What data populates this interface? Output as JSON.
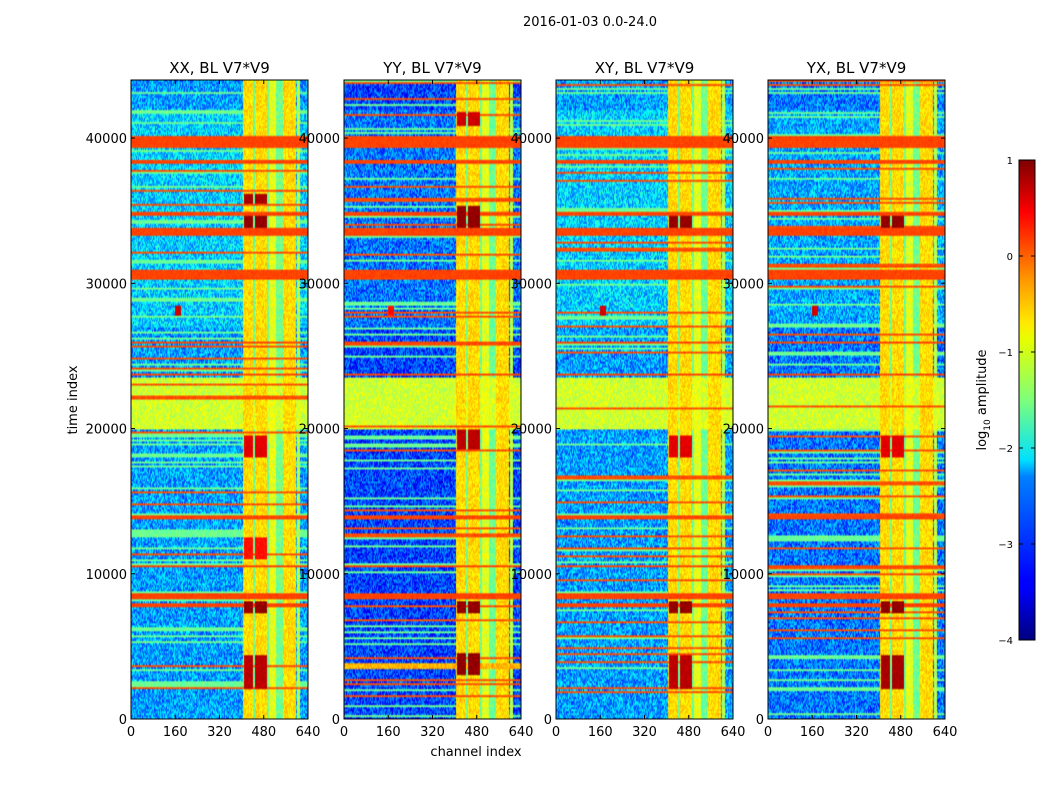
{
  "figure": {
    "suptitle": "2016-01-03 0.0-24.0",
    "xlabel": "channel index",
    "ylabel": "time index"
  },
  "colorbar": {
    "label": "log10 amplitude",
    "label_main": "log",
    "label_sub": "10",
    "label_rest": " amplitude",
    "colormap": "jet",
    "vmin": -4,
    "vmax": 1,
    "ticks": [
      1,
      0,
      -1,
      -2,
      -3,
      -4
    ],
    "tick_labels": [
      "1",
      "0",
      "−1",
      "−2",
      "−3",
      "−4"
    ]
  },
  "chart_data": [
    {
      "type": "heatmap",
      "title": "XX, BL V7*V9",
      "seed": 11,
      "xlim": [
        0,
        640
      ],
      "ylim": [
        0,
        44000
      ],
      "xticks": [
        0,
        160,
        320,
        480,
        640
      ],
      "xtick_labels": [
        "0",
        "160",
        "320",
        "480",
        "640"
      ],
      "yticks": [
        0,
        10000,
        20000,
        30000,
        40000
      ],
      "ytick_labels": [
        "0",
        "10000",
        "20000",
        "30000",
        "40000"
      ],
      "show_ylabel": true,
      "show_xlabel": false,
      "background_level": -2.6,
      "channel_bands": [
        {
          "from": 405,
          "to": 440,
          "level": -0.7
        },
        {
          "from": 440,
          "to": 448,
          "level": -1.6
        },
        {
          "from": 448,
          "to": 490,
          "level": -0.7
        },
        {
          "from": 490,
          "to": 500,
          "level": -1.6
        },
        {
          "from": 500,
          "to": 525,
          "level": -1.0
        },
        {
          "from": 525,
          "to": 550,
          "level": -1.6
        },
        {
          "from": 550,
          "to": 595,
          "level": -0.7
        },
        {
          "from": 600,
          "to": 612,
          "level": -1.2
        }
      ],
      "time_bands": [
        {
          "from": 39300,
          "to": 40100,
          "level": 0.05
        },
        {
          "from": 38200,
          "to": 38500,
          "level": 0.05
        },
        {
          "from": 34700,
          "to": 34900,
          "level": 0.05
        },
        {
          "from": 33300,
          "to": 33800,
          "level": 0.05
        },
        {
          "from": 30300,
          "to": 31000,
          "level": 0.05
        },
        {
          "from": 25800,
          "to": 26000,
          "level": 0.05
        },
        {
          "from": 23600,
          "to": 23800,
          "level": 0.05
        },
        {
          "from": 20000,
          "to": 23500,
          "level": -1.1
        },
        {
          "from": 13800,
          "to": 14000,
          "level": 0.05
        },
        {
          "from": 10400,
          "to": 10600,
          "level": 0.05
        },
        {
          "from": 8300,
          "to": 8600,
          "level": 0.05
        },
        {
          "from": 7700,
          "to": 8000,
          "level": 0.05
        }
      ],
      "rfi_blocks": [
        {
          "c0": 410,
          "c1": 440,
          "t0": 33800,
          "t1": 34600,
          "level": 0.9
        },
        {
          "c0": 450,
          "c1": 490,
          "t0": 33800,
          "t1": 34600,
          "level": 0.9
        },
        {
          "c0": 410,
          "c1": 440,
          "t0": 35500,
          "t1": 36200,
          "level": 0.8
        },
        {
          "c0": 450,
          "c1": 490,
          "t0": 35500,
          "t1": 36200,
          "level": 0.8
        },
        {
          "c0": 410,
          "c1": 440,
          "t0": 7300,
          "t1": 8100,
          "level": 0.9
        },
        {
          "c0": 450,
          "c1": 490,
          "t0": 7300,
          "t1": 8100,
          "level": 0.9
        },
        {
          "c0": 410,
          "c1": 440,
          "t0": 2000,
          "t1": 4400,
          "level": 0.7
        },
        {
          "c0": 450,
          "c1": 490,
          "t0": 2000,
          "t1": 4400,
          "level": 0.7
        },
        {
          "c0": 410,
          "c1": 440,
          "t0": 18000,
          "t1": 19500,
          "level": 0.5
        },
        {
          "c0": 450,
          "c1": 490,
          "t0": 18000,
          "t1": 19500,
          "level": 0.5
        },
        {
          "c0": 410,
          "c1": 440,
          "t0": 11000,
          "t1": 12500,
          "level": 0.3
        },
        {
          "c0": 450,
          "c1": 490,
          "t0": 11000,
          "t1": 12500,
          "level": 0.3
        },
        {
          "c0": 160,
          "c1": 180,
          "t0": 27800,
          "t1": 28500,
          "level": 0.6
        }
      ]
    },
    {
      "type": "heatmap",
      "title": "YY, BL V7*V9",
      "seed": 23,
      "xlim": [
        0,
        640
      ],
      "ylim": [
        0,
        44000
      ],
      "xticks": [
        0,
        160,
        320,
        480,
        640
      ],
      "xtick_labels": [
        "0",
        "160",
        "320",
        "480",
        "640"
      ],
      "yticks": [
        0,
        10000,
        20000,
        30000,
        40000
      ],
      "ytick_labels": [
        "0",
        "10000",
        "20000",
        "30000",
        "40000"
      ],
      "show_ylabel": false,
      "show_xlabel": true,
      "background_level": -3.05,
      "channel_bands": [
        {
          "from": 405,
          "to": 440,
          "level": -0.7
        },
        {
          "from": 440,
          "to": 448,
          "level": -1.6
        },
        {
          "from": 448,
          "to": 490,
          "level": -0.7
        },
        {
          "from": 490,
          "to": 500,
          "level": -1.6
        },
        {
          "from": 500,
          "to": 525,
          "level": -1.0
        },
        {
          "from": 525,
          "to": 550,
          "level": -1.6
        },
        {
          "from": 550,
          "to": 595,
          "level": -0.7
        },
        {
          "from": 600,
          "to": 612,
          "level": -1.2
        }
      ],
      "time_bands": [
        {
          "from": 39300,
          "to": 40100,
          "level": 0.05
        },
        {
          "from": 38200,
          "to": 38500,
          "level": 0.05
        },
        {
          "from": 34700,
          "to": 34900,
          "level": 0.05
        },
        {
          "from": 33300,
          "to": 33800,
          "level": 0.05
        },
        {
          "from": 30300,
          "to": 31000,
          "level": 0.05
        },
        {
          "from": 25800,
          "to": 26000,
          "level": 0.05
        },
        {
          "from": 23600,
          "to": 23800,
          "level": 0.05
        },
        {
          "from": 20000,
          "to": 23500,
          "level": -1.1
        },
        {
          "from": 13800,
          "to": 14000,
          "level": 0.05
        },
        {
          "from": 10400,
          "to": 10600,
          "level": 0.05
        },
        {
          "from": 8300,
          "to": 8600,
          "level": 0.05
        },
        {
          "from": 3500,
          "to": 3900,
          "level": -0.5
        }
      ],
      "rfi_blocks": [
        {
          "c0": 410,
          "c1": 440,
          "t0": 33800,
          "t1": 35400,
          "level": 0.9
        },
        {
          "c0": 450,
          "c1": 490,
          "t0": 33800,
          "t1": 35400,
          "level": 0.9
        },
        {
          "c0": 410,
          "c1": 440,
          "t0": 7300,
          "t1": 8100,
          "level": 0.9
        },
        {
          "c0": 450,
          "c1": 490,
          "t0": 7300,
          "t1": 8100,
          "level": 0.9
        },
        {
          "c0": 410,
          "c1": 440,
          "t0": 3000,
          "t1": 4500,
          "level": 0.9
        },
        {
          "c0": 450,
          "c1": 490,
          "t0": 3000,
          "t1": 4500,
          "level": 0.9
        },
        {
          "c0": 410,
          "c1": 440,
          "t0": 18500,
          "t1": 20000,
          "level": 0.7
        },
        {
          "c0": 450,
          "c1": 490,
          "t0": 18500,
          "t1": 20000,
          "level": 0.7
        },
        {
          "c0": 410,
          "c1": 440,
          "t0": 40800,
          "t1": 41800,
          "level": 0.6
        },
        {
          "c0": 450,
          "c1": 490,
          "t0": 40800,
          "t1": 41800,
          "level": 0.6
        },
        {
          "c0": 160,
          "c1": 180,
          "t0": 27800,
          "t1": 28500,
          "level": 0.3
        }
      ]
    },
    {
      "type": "heatmap",
      "title": "XY, BL V7*V9",
      "seed": 37,
      "xlim": [
        0,
        640
      ],
      "ylim": [
        0,
        44000
      ],
      "xticks": [
        0,
        160,
        320,
        480,
        640
      ],
      "xtick_labels": [
        "0",
        "160",
        "320",
        "480",
        "640"
      ],
      "yticks": [
        0,
        10000,
        20000,
        30000,
        40000
      ],
      "ytick_labels": [
        "0",
        "10000",
        "20000",
        "30000",
        "40000"
      ],
      "show_ylabel": false,
      "show_xlabel": false,
      "background_level": -2.6,
      "channel_bands": [
        {
          "from": 405,
          "to": 440,
          "level": -0.7
        },
        {
          "from": 440,
          "to": 448,
          "level": -1.6
        },
        {
          "from": 448,
          "to": 490,
          "level": -0.7
        },
        {
          "from": 490,
          "to": 500,
          "level": -1.6
        },
        {
          "from": 500,
          "to": 525,
          "level": -1.0
        },
        {
          "from": 525,
          "to": 550,
          "level": -1.6
        },
        {
          "from": 550,
          "to": 595,
          "level": -0.7
        },
        {
          "from": 600,
          "to": 612,
          "level": -1.2
        }
      ],
      "time_bands": [
        {
          "from": 39300,
          "to": 40100,
          "level": 0.05
        },
        {
          "from": 38200,
          "to": 38500,
          "level": 0.05
        },
        {
          "from": 34700,
          "to": 34900,
          "level": 0.05
        },
        {
          "from": 33300,
          "to": 33800,
          "level": 0.05
        },
        {
          "from": 30300,
          "to": 31000,
          "level": 0.05
        },
        {
          "from": 25800,
          "to": 26000,
          "level": 0.05
        },
        {
          "from": 23600,
          "to": 23800,
          "level": 0.05
        },
        {
          "from": 20000,
          "to": 23500,
          "level": -1.1
        },
        {
          "from": 13800,
          "to": 14000,
          "level": 0.05
        },
        {
          "from": 10400,
          "to": 10600,
          "level": 0.05
        },
        {
          "from": 8300,
          "to": 8600,
          "level": 0.05
        },
        {
          "from": 7700,
          "to": 8000,
          "level": 0.05
        }
      ],
      "rfi_blocks": [
        {
          "c0": 410,
          "c1": 440,
          "t0": 33800,
          "t1": 34600,
          "level": 0.9
        },
        {
          "c0": 450,
          "c1": 490,
          "t0": 33800,
          "t1": 34600,
          "level": 0.9
        },
        {
          "c0": 410,
          "c1": 440,
          "t0": 7300,
          "t1": 8100,
          "level": 0.9
        },
        {
          "c0": 450,
          "c1": 490,
          "t0": 7300,
          "t1": 8100,
          "level": 0.9
        },
        {
          "c0": 410,
          "c1": 440,
          "t0": 2000,
          "t1": 4400,
          "level": 0.7
        },
        {
          "c0": 450,
          "c1": 490,
          "t0": 2000,
          "t1": 4400,
          "level": 0.7
        },
        {
          "c0": 410,
          "c1": 440,
          "t0": 18000,
          "t1": 19500,
          "level": 0.5
        },
        {
          "c0": 450,
          "c1": 490,
          "t0": 18000,
          "t1": 19500,
          "level": 0.5
        },
        {
          "c0": 160,
          "c1": 180,
          "t0": 27800,
          "t1": 28500,
          "level": 0.6
        }
      ]
    },
    {
      "type": "heatmap",
      "title": "YX, BL V7*V9",
      "seed": 53,
      "xlim": [
        0,
        640
      ],
      "ylim": [
        0,
        44000
      ],
      "xticks": [
        0,
        160,
        320,
        480,
        640
      ],
      "xtick_labels": [
        "0",
        "160",
        "320",
        "480",
        "640"
      ],
      "yticks": [
        0,
        10000,
        20000,
        30000,
        40000
      ],
      "ytick_labels": [
        "0",
        "10000",
        "20000",
        "30000",
        "40000"
      ],
      "show_ylabel": false,
      "show_xlabel": false,
      "background_level": -2.8,
      "channel_bands": [
        {
          "from": 405,
          "to": 440,
          "level": -0.7
        },
        {
          "from": 440,
          "to": 448,
          "level": -1.6
        },
        {
          "from": 448,
          "to": 490,
          "level": -0.7
        },
        {
          "from": 490,
          "to": 500,
          "level": -1.6
        },
        {
          "from": 500,
          "to": 525,
          "level": -1.0
        },
        {
          "from": 525,
          "to": 550,
          "level": -1.6
        },
        {
          "from": 550,
          "to": 595,
          "level": -0.7
        },
        {
          "from": 600,
          "to": 612,
          "level": -1.2
        }
      ],
      "time_bands": [
        {
          "from": 39300,
          "to": 40100,
          "level": 0.05
        },
        {
          "from": 38200,
          "to": 38500,
          "level": 0.05
        },
        {
          "from": 34700,
          "to": 34900,
          "level": 0.05
        },
        {
          "from": 33300,
          "to": 33800,
          "level": 0.05
        },
        {
          "from": 30300,
          "to": 31000,
          "level": 0.05
        },
        {
          "from": 25800,
          "to": 26000,
          "level": 0.05
        },
        {
          "from": 23600,
          "to": 23800,
          "level": 0.05
        },
        {
          "from": 20000,
          "to": 23500,
          "level": -1.1
        },
        {
          "from": 13800,
          "to": 14000,
          "level": 0.05
        },
        {
          "from": 10400,
          "to": 10600,
          "level": 0.05
        },
        {
          "from": 8300,
          "to": 8600,
          "level": 0.05
        },
        {
          "from": 7700,
          "to": 8000,
          "level": 0.05
        }
      ],
      "rfi_blocks": [
        {
          "c0": 410,
          "c1": 440,
          "t0": 33800,
          "t1": 34600,
          "level": 0.9
        },
        {
          "c0": 450,
          "c1": 490,
          "t0": 33800,
          "t1": 34600,
          "level": 0.9
        },
        {
          "c0": 410,
          "c1": 440,
          "t0": 7300,
          "t1": 8100,
          "level": 0.9
        },
        {
          "c0": 450,
          "c1": 490,
          "t0": 7300,
          "t1": 8100,
          "level": 0.9
        },
        {
          "c0": 410,
          "c1": 440,
          "t0": 2000,
          "t1": 4400,
          "level": 0.8
        },
        {
          "c0": 450,
          "c1": 490,
          "t0": 2000,
          "t1": 4400,
          "level": 0.8
        },
        {
          "c0": 410,
          "c1": 440,
          "t0": 18000,
          "t1": 19500,
          "level": 0.5
        },
        {
          "c0": 450,
          "c1": 490,
          "t0": 18000,
          "t1": 19500,
          "level": 0.5
        },
        {
          "c0": 160,
          "c1": 180,
          "t0": 27800,
          "t1": 28500,
          "level": 0.6
        }
      ]
    }
  ]
}
